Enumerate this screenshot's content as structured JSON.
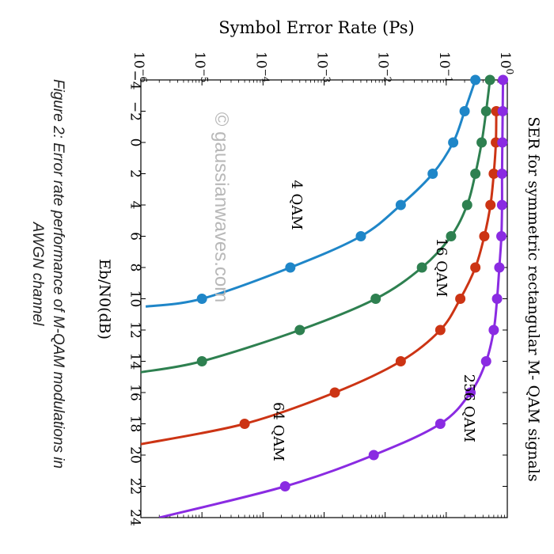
{
  "caption": "Figure 2: Error rate performance of M-QAM modulations in AWGN channel",
  "caption_line1": "Figure 2: Error rate performance of M-QAM modulations in",
  "caption_line2": "AWGN channel",
  "watermark": "© gaussianwaves.com",
  "colors": {
    "4 QAM": "#1f86c8",
    "16 QAM": "#2e8050",
    "64 QAM": "#cc3414",
    "256 QAM": "#8a2be2",
    "axis": "#000000"
  },
  "chart_data": {
    "type": "line",
    "title": "SER for symmetric rectangular M- QAM signals",
    "xlabel": "Eb/N0(dB)",
    "ylabel": "Symbol Error Rate (Ps)",
    "xlim": [
      -4,
      24
    ],
    "ylim": [
      1e-06,
      1
    ],
    "yscale": "log",
    "orientation": "rotated 90 degrees clockwise",
    "x_ticks": [
      -4,
      -2,
      0,
      2,
      4,
      6,
      8,
      10,
      12,
      14,
      16,
      18,
      20,
      22,
      24
    ],
    "x_tick_labels": [
      "−4",
      "−2",
      "0",
      "2",
      "4",
      "6",
      "8",
      "10",
      "12",
      "14",
      "16",
      "18",
      "20",
      "22",
      "24"
    ],
    "y_ticks": [
      {
        "exp": -6,
        "base": "10",
        "power": "−6"
      },
      {
        "exp": -5,
        "base": "10",
        "power": "−5"
      },
      {
        "exp": -4,
        "base": "10",
        "power": "−4"
      },
      {
        "exp": -3,
        "base": "10",
        "power": "−3"
      },
      {
        "exp": -2,
        "base": "10",
        "power": "−2"
      },
      {
        "exp": -1,
        "base": "10",
        "power": "−1"
      },
      {
        "exp": 0,
        "base": "10",
        "power": "0"
      }
    ],
    "series": [
      {
        "name": "4 QAM",
        "label": "4 QAM",
        "label_pos": [
          4,
          0.0003
        ],
        "x": [
          -4,
          -2,
          0,
          2,
          4,
          6,
          8,
          10
        ],
        "y": [
          0.3,
          0.2,
          0.13,
          0.06,
          0.018,
          0.004,
          0.00028,
          1e-05
        ],
        "line_end": [
          10.5,
          1.2e-06
        ]
      },
      {
        "name": "16 QAM",
        "label": "16 QAM",
        "label_pos": [
          8,
          0.07
        ],
        "x": [
          -4,
          -2,
          0,
          2,
          4,
          6,
          8,
          10,
          12,
          14
        ],
        "y": [
          0.52,
          0.45,
          0.38,
          0.3,
          0.22,
          0.12,
          0.04,
          0.007,
          0.0004,
          1e-05
        ],
        "line_end": [
          14.7,
          1e-06
        ]
      },
      {
        "name": "64 QAM",
        "label": "64 QAM",
        "label_pos": [
          18.5,
          0.00015
        ],
        "x": [
          -2,
          0,
          2,
          4,
          6,
          8,
          10,
          12,
          14,
          16,
          18
        ],
        "y": [
          0.66,
          0.65,
          0.6,
          0.53,
          0.42,
          0.3,
          0.17,
          0.08,
          0.018,
          0.0015,
          5e-05
        ],
        "line_end": [
          19.3,
          1e-06
        ]
      },
      {
        "name": "256 QAM",
        "label": "256 QAM",
        "label_pos": [
          17,
          0.2
        ],
        "x": [
          -4,
          -2,
          0,
          2,
          4,
          6,
          8,
          10,
          12,
          14,
          16,
          18,
          20,
          22
        ],
        "y": [
          0.85,
          0.84,
          0.83,
          0.82,
          0.82,
          0.8,
          0.74,
          0.68,
          0.6,
          0.45,
          0.25,
          0.08,
          0.0065,
          0.00023
        ],
        "line_end": [
          24,
          2e-06
        ]
      }
    ]
  }
}
